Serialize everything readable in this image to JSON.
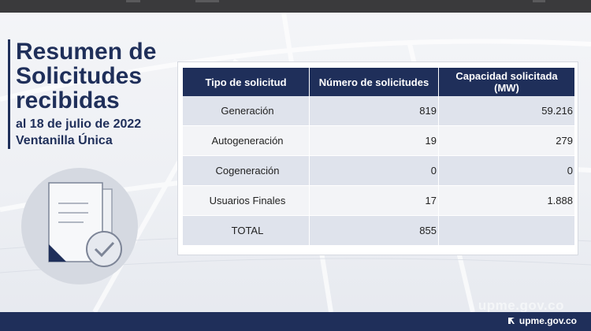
{
  "slide": {
    "title": "Resumen de Solicitudes recibidas",
    "subtitle_line1": "al 18 de julio de 2022",
    "subtitle_line2": "Ventanilla Única"
  },
  "table": {
    "headers": [
      "Tipo de solicitud",
      "Número de solicitudes",
      "Capacidad solicitada (MW)"
    ],
    "rows": [
      {
        "type": "Generación",
        "count": "819",
        "capacity": "59.216"
      },
      {
        "type": "Autogeneración",
        "count": "19",
        "capacity": "279"
      },
      {
        "type": "Cogeneración",
        "count": "0",
        "capacity": "0"
      },
      {
        "type": "Usuarios Finales",
        "count": "17",
        "capacity": "1.888"
      },
      {
        "type": "TOTAL",
        "count": "855",
        "capacity": ""
      }
    ]
  },
  "footer": {
    "logo_text": "upme.gov.co",
    "watermark_text": "upme.gov.co"
  },
  "icons": {
    "illustration": "document-check-icon",
    "footer_logo": "upme-logo-icon"
  },
  "colors": {
    "navy": "#1f2f5a",
    "row_shade": "#dfe3ec",
    "row_plain": "#f3f4f7"
  }
}
